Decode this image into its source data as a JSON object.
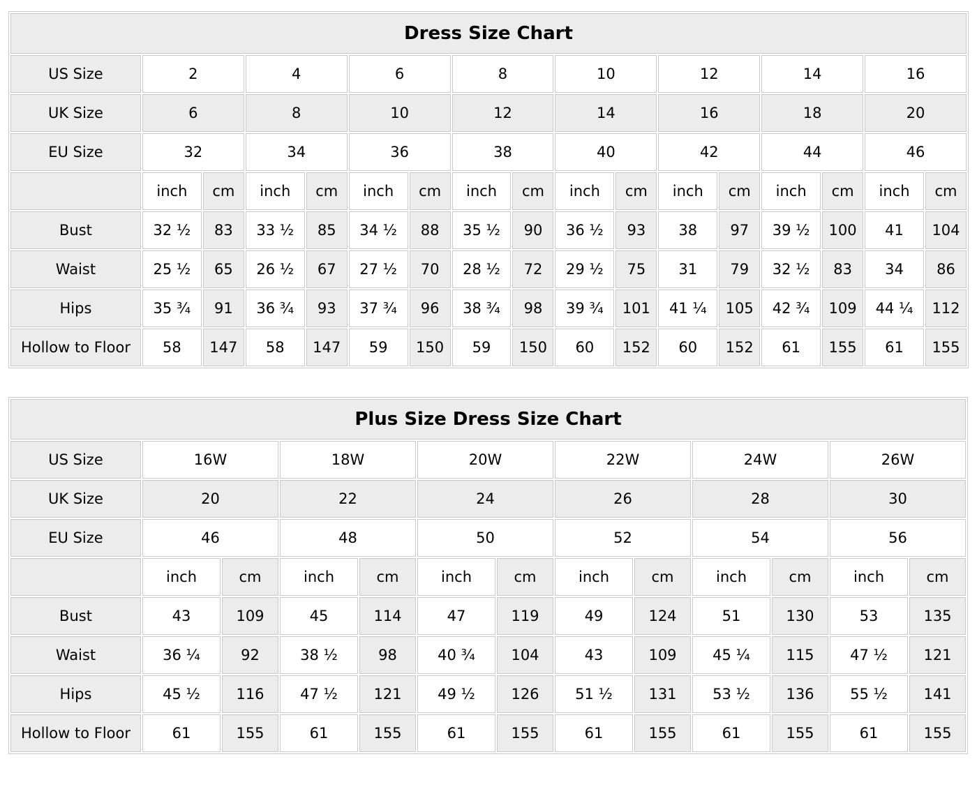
{
  "colors": {
    "cell_shaded": "#ececec",
    "cell_plain": "#ffffff",
    "border": "#c9c9c9",
    "text": "#000000",
    "page_background": "#ffffff"
  },
  "tables": [
    {
      "title": "Dress Size Chart",
      "size_rows": [
        {
          "label": "US Size",
          "values": [
            "2",
            "4",
            "6",
            "8",
            "10",
            "12",
            "14",
            "16"
          ]
        },
        {
          "label": "UK Size",
          "values": [
            "6",
            "8",
            "10",
            "12",
            "14",
            "16",
            "18",
            "20"
          ]
        },
        {
          "label": "EU Size",
          "values": [
            "32",
            "34",
            "36",
            "38",
            "40",
            "42",
            "44",
            "46"
          ]
        }
      ],
      "unit_headers": [
        "inch",
        "cm"
      ],
      "measure_rows": [
        {
          "label": "Bust",
          "values": [
            [
              "32 ½",
              "83"
            ],
            [
              "33 ½",
              "85"
            ],
            [
              "34 ½",
              "88"
            ],
            [
              "35 ½",
              "90"
            ],
            [
              "36 ½",
              "93"
            ],
            [
              "38",
              "97"
            ],
            [
              "39 ½",
              "100"
            ],
            [
              "41",
              "104"
            ]
          ]
        },
        {
          "label": "Waist",
          "values": [
            [
              "25 ½",
              "65"
            ],
            [
              "26 ½",
              "67"
            ],
            [
              "27 ½",
              "70"
            ],
            [
              "28 ½",
              "72"
            ],
            [
              "29 ½",
              "75"
            ],
            [
              "31",
              "79"
            ],
            [
              "32 ½",
              "83"
            ],
            [
              "34",
              "86"
            ]
          ]
        },
        {
          "label": "Hips",
          "values": [
            [
              "35 ¾",
              "91"
            ],
            [
              "36 ¾",
              "93"
            ],
            [
              "37 ¾",
              "96"
            ],
            [
              "38 ¾",
              "98"
            ],
            [
              "39 ¾",
              "101"
            ],
            [
              "41 ¼",
              "105"
            ],
            [
              "42 ¾",
              "109"
            ],
            [
              "44 ¼",
              "112"
            ]
          ]
        },
        {
          "label": "Hollow to Floor",
          "values": [
            [
              "58",
              "147"
            ],
            [
              "58",
              "147"
            ],
            [
              "59",
              "150"
            ],
            [
              "59",
              "150"
            ],
            [
              "60",
              "152"
            ],
            [
              "60",
              "152"
            ],
            [
              "61",
              "155"
            ],
            [
              "61",
              "155"
            ]
          ]
        }
      ]
    },
    {
      "title": "Plus Size Dress Size Chart",
      "size_rows": [
        {
          "label": "US Size",
          "values": [
            "16W",
            "18W",
            "20W",
            "22W",
            "24W",
            "26W"
          ]
        },
        {
          "label": "UK Size",
          "values": [
            "20",
            "22",
            "24",
            "26",
            "28",
            "30"
          ]
        },
        {
          "label": "EU Size",
          "values": [
            "46",
            "48",
            "50",
            "52",
            "54",
            "56"
          ]
        }
      ],
      "unit_headers": [
        "inch",
        "cm"
      ],
      "measure_rows": [
        {
          "label": "Bust",
          "values": [
            [
              "43",
              "109"
            ],
            [
              "45",
              "114"
            ],
            [
              "47",
              "119"
            ],
            [
              "49",
              "124"
            ],
            [
              "51",
              "130"
            ],
            [
              "53",
              "135"
            ]
          ]
        },
        {
          "label": "Waist",
          "values": [
            [
              "36 ¼",
              "92"
            ],
            [
              "38 ½",
              "98"
            ],
            [
              "40 ¾",
              "104"
            ],
            [
              "43",
              "109"
            ],
            [
              "45 ¼",
              "115"
            ],
            [
              "47 ½",
              "121"
            ]
          ]
        },
        {
          "label": "Hips",
          "values": [
            [
              "45 ½",
              "116"
            ],
            [
              "47 ½",
              "121"
            ],
            [
              "49 ½",
              "126"
            ],
            [
              "51 ½",
              "131"
            ],
            [
              "53 ½",
              "136"
            ],
            [
              "55 ½",
              "141"
            ]
          ]
        },
        {
          "label": "Hollow to Floor",
          "values": [
            [
              "61",
              "155"
            ],
            [
              "61",
              "155"
            ],
            [
              "61",
              "155"
            ],
            [
              "61",
              "155"
            ],
            [
              "61",
              "155"
            ],
            [
              "61",
              "155"
            ]
          ]
        }
      ]
    }
  ]
}
